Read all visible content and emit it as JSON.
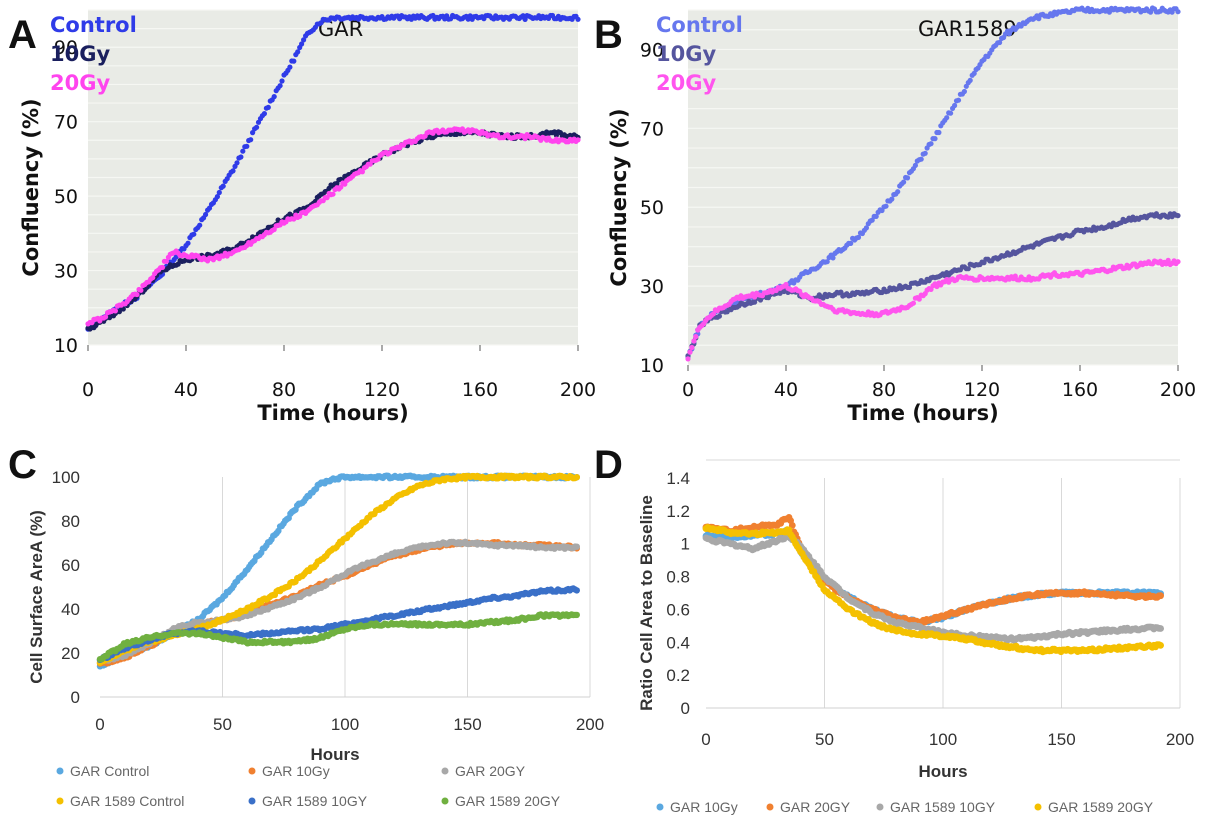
{
  "chart_data": [
    {
      "panel": "A",
      "type": "scatter",
      "title": "GAR",
      "xlabel": "Time (hours)",
      "ylabel": "Confluency (%)",
      "xlim": [
        0,
        200
      ],
      "ylim": [
        10,
        100
      ],
      "xticks": [
        0,
        40,
        80,
        120,
        160,
        200
      ],
      "yticks": [
        10,
        30,
        50,
        70,
        90
      ],
      "grid": true,
      "legend": "top-left",
      "series": [
        {
          "name": "Control",
          "color": "#2f3be8",
          "x": [
            0,
            5,
            10,
            20,
            30,
            40,
            50,
            60,
            70,
            80,
            90,
            95,
            100,
            120,
            140,
            160,
            180,
            200
          ],
          "y": [
            14,
            17,
            19,
            23,
            29,
            37,
            47,
            58,
            70,
            82,
            94,
            97,
            98,
            98,
            98,
            98,
            98,
            98
          ]
        },
        {
          "name": "10Gy",
          "color": "#1a1f5e",
          "x": [
            0,
            5,
            10,
            20,
            30,
            40,
            50,
            60,
            70,
            80,
            90,
            100,
            110,
            120,
            130,
            140,
            150,
            160,
            170,
            180,
            190,
            200
          ],
          "y": [
            14,
            16,
            18,
            23,
            30,
            33,
            34,
            36,
            40,
            44,
            47,
            53,
            57,
            61,
            64,
            66,
            67,
            67,
            66,
            66,
            67,
            66
          ]
        },
        {
          "name": "20Gy",
          "color": "#ff44ee",
          "x": [
            0,
            5,
            10,
            20,
            30,
            35,
            40,
            50,
            60,
            70,
            80,
            90,
            100,
            110,
            120,
            130,
            140,
            150,
            160,
            170,
            180,
            190,
            200
          ],
          "y": [
            16,
            17,
            19,
            24,
            31,
            35,
            34,
            33,
            35,
            39,
            43,
            46,
            51,
            56,
            61,
            64,
            67,
            68,
            67,
            66,
            66,
            65,
            65
          ]
        }
      ]
    },
    {
      "panel": "B",
      "type": "scatter",
      "title": "GAR1589",
      "xlabel": "Time (hours)",
      "ylabel": "Confluency (%)",
      "xlim": [
        0,
        200
      ],
      "ylim": [
        10,
        100
      ],
      "xticks": [
        0,
        40,
        80,
        120,
        160,
        200
      ],
      "yticks": [
        10,
        30,
        50,
        70,
        90
      ],
      "grid": true,
      "legend": "top-left",
      "series": [
        {
          "name": "Control",
          "color": "#6677ee",
          "x": [
            0,
            5,
            10,
            20,
            30,
            40,
            50,
            60,
            70,
            80,
            90,
            100,
            110,
            120,
            130,
            140,
            150,
            160,
            180,
            200
          ],
          "y": [
            12,
            20,
            23,
            26,
            28,
            30,
            34,
            38,
            43,
            50,
            58,
            67,
            77,
            87,
            94,
            98,
            99,
            100,
            100,
            100
          ]
        },
        {
          "name": "10Gy",
          "color": "#55559e",
          "x": [
            0,
            5,
            10,
            20,
            30,
            40,
            50,
            60,
            70,
            80,
            90,
            100,
            110,
            120,
            130,
            140,
            150,
            160,
            170,
            180,
            190,
            200
          ],
          "y": [
            12,
            20,
            22,
            25,
            27,
            29,
            27,
            28,
            28,
            29,
            30,
            32,
            34,
            36,
            38,
            40,
            42,
            44,
            45,
            47,
            48,
            48
          ]
        },
        {
          "name": "20Gy",
          "color": "#ff55ee",
          "x": [
            0,
            5,
            10,
            20,
            30,
            40,
            50,
            60,
            70,
            80,
            90,
            100,
            110,
            120,
            130,
            140,
            150,
            160,
            170,
            180,
            190,
            200
          ],
          "y": [
            12,
            20,
            23,
            27,
            28,
            30,
            27,
            24,
            23,
            23,
            25,
            30,
            32,
            32,
            32,
            32,
            33,
            33,
            34,
            35,
            36,
            36
          ]
        }
      ]
    },
    {
      "panel": "C",
      "type": "scatter",
      "title": "",
      "xlabel": "Hours",
      "ylabel": "Cell Surface AreA (%)",
      "xlim": [
        0,
        200
      ],
      "ylim": [
        0,
        100
      ],
      "xticks": [
        0,
        50,
        100,
        150,
        200
      ],
      "yticks": [
        0,
        20,
        40,
        60,
        80,
        100
      ],
      "grid": true,
      "legend": "bottom",
      "series": [
        {
          "name": "GAR Control",
          "color": "#5aa8e0",
          "x": [
            0,
            10,
            20,
            30,
            40,
            50,
            60,
            70,
            80,
            90,
            95,
            100,
            110,
            120,
            150,
            170,
            195
          ],
          "y": [
            14,
            19,
            23,
            29,
            35,
            45,
            58,
            72,
            86,
            97,
            99,
            100,
            100,
            100,
            100,
            100,
            100
          ]
        },
        {
          "name": "GAR 10Gy",
          "color": "#f08030",
          "x": [
            0,
            10,
            20,
            30,
            40,
            50,
            60,
            70,
            80,
            90,
            100,
            110,
            120,
            130,
            140,
            150,
            160,
            170,
            180,
            195
          ],
          "y": [
            15,
            18,
            23,
            29,
            33,
            35,
            38,
            42,
            46,
            51,
            55,
            60,
            64,
            67,
            69,
            70,
            70,
            69,
            69,
            68
          ]
        },
        {
          "name": "GAR 20GY",
          "color": "#a8a8a8",
          "x": [
            0,
            10,
            20,
            30,
            40,
            50,
            60,
            70,
            80,
            90,
            100,
            110,
            120,
            130,
            140,
            150,
            160,
            170,
            180,
            195
          ],
          "y": [
            16,
            19,
            24,
            31,
            34,
            35,
            37,
            41,
            45,
            50,
            56,
            61,
            65,
            68,
            70,
            70,
            69,
            69,
            68,
            68
          ]
        },
        {
          "name": "GAR 1589 Control",
          "color": "#f4c000",
          "x": [
            0,
            10,
            20,
            30,
            40,
            50,
            60,
            70,
            80,
            90,
            100,
            110,
            120,
            130,
            140,
            150,
            160,
            180,
            195
          ],
          "y": [
            16,
            21,
            25,
            28,
            31,
            35,
            40,
            46,
            53,
            62,
            72,
            82,
            90,
            96,
            99,
            100,
            100,
            100,
            100
          ]
        },
        {
          "name": "GAR 1589 10GY",
          "color": "#3a70c8",
          "x": [
            0,
            10,
            20,
            30,
            40,
            50,
            60,
            70,
            80,
            90,
            100,
            110,
            120,
            130,
            140,
            150,
            160,
            170,
            180,
            195
          ],
          "y": [
            17,
            22,
            26,
            29,
            30,
            29,
            28,
            29,
            30,
            31,
            33,
            35,
            37,
            39,
            41,
            43,
            45,
            46,
            48,
            49
          ]
        },
        {
          "name": "GAR 1589 20GY",
          "color": "#70b040",
          "x": [
            0,
            10,
            20,
            30,
            40,
            50,
            60,
            70,
            80,
            90,
            100,
            110,
            120,
            130,
            140,
            150,
            160,
            170,
            180,
            195
          ],
          "y": [
            17,
            24,
            27,
            29,
            29,
            27,
            25,
            25,
            25,
            27,
            31,
            33,
            33,
            33,
            33,
            33,
            34,
            35,
            37,
            37
          ]
        }
      ]
    },
    {
      "panel": "D",
      "type": "scatter",
      "title": "",
      "xlabel": "Hours",
      "ylabel": "Ratio Cell Area to Baseline",
      "xlim": [
        0,
        200
      ],
      "ylim": [
        0,
        1.4
      ],
      "xticks": [
        0,
        50,
        100,
        150,
        200
      ],
      "yticks": [
        0,
        0.2,
        0.4,
        0.6,
        0.8,
        1,
        1.2,
        1.4
      ],
      "grid": true,
      "legend": "bottom",
      "series": [
        {
          "name": "GAR 10Gy",
          "color": "#5aa8e0",
          "x": [
            0,
            10,
            20,
            30,
            35,
            40,
            50,
            60,
            70,
            80,
            90,
            100,
            110,
            120,
            130,
            140,
            150,
            160,
            170,
            180,
            192
          ],
          "y": [
            1.05,
            1.04,
            1.05,
            1.06,
            1.08,
            0.95,
            0.78,
            0.68,
            0.6,
            0.55,
            0.52,
            0.55,
            0.6,
            0.64,
            0.67,
            0.69,
            0.7,
            0.7,
            0.7,
            0.7,
            0.7
          ]
        },
        {
          "name": "GAR 20GY",
          "color": "#f08030",
          "x": [
            0,
            10,
            20,
            30,
            35,
            40,
            50,
            60,
            70,
            80,
            90,
            100,
            110,
            120,
            130,
            140,
            150,
            160,
            170,
            180,
            192
          ],
          "y": [
            1.1,
            1.08,
            1.1,
            1.12,
            1.16,
            0.97,
            0.77,
            0.67,
            0.6,
            0.55,
            0.52,
            0.56,
            0.6,
            0.64,
            0.67,
            0.69,
            0.7,
            0.7,
            0.69,
            0.68,
            0.68
          ]
        },
        {
          "name": "GAR 1589 10GY",
          "color": "#a8a8a8",
          "x": [
            0,
            10,
            20,
            30,
            35,
            40,
            50,
            60,
            70,
            80,
            90,
            100,
            110,
            120,
            130,
            140,
            150,
            160,
            170,
            180,
            192
          ],
          "y": [
            1.03,
            1.0,
            0.97,
            1.02,
            1.05,
            0.98,
            0.8,
            0.67,
            0.58,
            0.52,
            0.49,
            0.46,
            0.44,
            0.43,
            0.42,
            0.43,
            0.45,
            0.46,
            0.47,
            0.48,
            0.49
          ]
        },
        {
          "name": "GAR 1589 20GY",
          "color": "#f4c000",
          "x": [
            0,
            10,
            20,
            30,
            35,
            40,
            50,
            60,
            70,
            80,
            90,
            100,
            110,
            120,
            130,
            140,
            150,
            160,
            170,
            180,
            192
          ],
          "y": [
            1.1,
            1.07,
            1.06,
            1.07,
            1.08,
            0.95,
            0.72,
            0.6,
            0.52,
            0.47,
            0.45,
            0.44,
            0.42,
            0.39,
            0.37,
            0.35,
            0.35,
            0.35,
            0.36,
            0.37,
            0.38
          ]
        }
      ]
    }
  ]
}
